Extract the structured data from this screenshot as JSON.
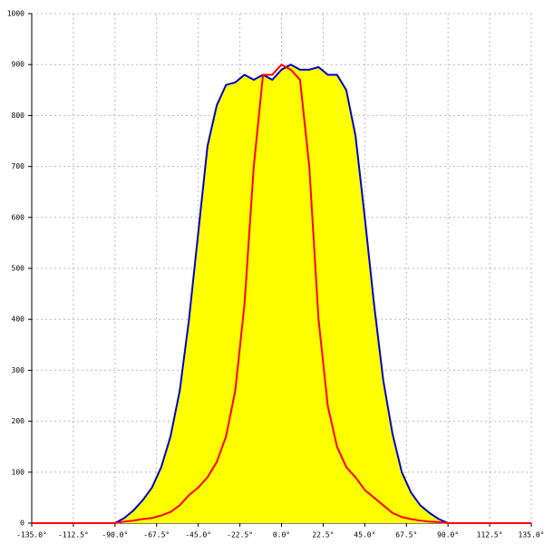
{
  "chart_data": {
    "type": "line",
    "x": [
      -135,
      -130,
      -125,
      -120,
      -115,
      -110,
      -105,
      -100,
      -95,
      -90,
      -85,
      -80,
      -75,
      -70,
      -65,
      -60,
      -55,
      -50,
      -45,
      -40,
      -35,
      -30,
      -25,
      -20,
      -15,
      -10,
      -5,
      0,
      5,
      10,
      15,
      20,
      25,
      30,
      35,
      40,
      45,
      50,
      55,
      60,
      65,
      70,
      75,
      80,
      85,
      90,
      95,
      100,
      105,
      110,
      115,
      120,
      125,
      130,
      135
    ],
    "series": [
      {
        "color": "#0000cc",
        "fill": "#ffff00",
        "values": [
          null,
          null,
          null,
          null,
          null,
          null,
          null,
          null,
          null,
          0,
          10,
          25,
          45,
          70,
          110,
          170,
          260,
          400,
          570,
          740,
          820,
          860,
          865,
          880,
          870,
          880,
          870,
          890,
          900,
          890,
          890,
          895,
          880,
          880,
          850,
          760,
          600,
          430,
          280,
          175,
          100,
          60,
          35,
          20,
          8,
          0,
          null,
          null,
          null,
          null,
          null,
          null,
          null,
          null,
          null
        ]
      },
      {
        "color": "#ff0000",
        "values": [
          0,
          0,
          0,
          0,
          0,
          0,
          0,
          0,
          0,
          0,
          3,
          5,
          8,
          10,
          15,
          22,
          35,
          55,
          70,
          90,
          120,
          170,
          260,
          430,
          700,
          880,
          880,
          900,
          890,
          870,
          700,
          400,
          230,
          150,
          110,
          90,
          65,
          50,
          35,
          20,
          12,
          8,
          5,
          3,
          2,
          0,
          0,
          0,
          0,
          0,
          0,
          0,
          0,
          0,
          0
        ]
      }
    ],
    "xlim": [
      -135,
      135
    ],
    "xticks": [
      {
        "value": -135,
        "label": "-135.0°"
      },
      {
        "value": -112.5,
        "label": "-112.5°"
      },
      {
        "value": -90,
        "label": "-90.0°"
      },
      {
        "value": -67.5,
        "label": "-67.5°"
      },
      {
        "value": -45,
        "label": "-45.0°"
      },
      {
        "value": -22.5,
        "label": "-22.5°"
      },
      {
        "value": 0,
        "label": "0.0°"
      },
      {
        "value": 22.5,
        "label": "22.5°"
      },
      {
        "value": 45,
        "label": "45.0°"
      },
      {
        "value": 67.5,
        "label": "67.5°"
      },
      {
        "value": 90,
        "label": "90.0°"
      },
      {
        "value": 112.5,
        "label": "112.5°"
      },
      {
        "value": 135,
        "label": "135.0°"
      }
    ],
    "ylim": [
      0,
      1000
    ],
    "yticks": [
      0,
      100,
      200,
      300,
      400,
      500,
      600,
      700,
      800,
      900,
      1000
    ],
    "grid": true
  }
}
